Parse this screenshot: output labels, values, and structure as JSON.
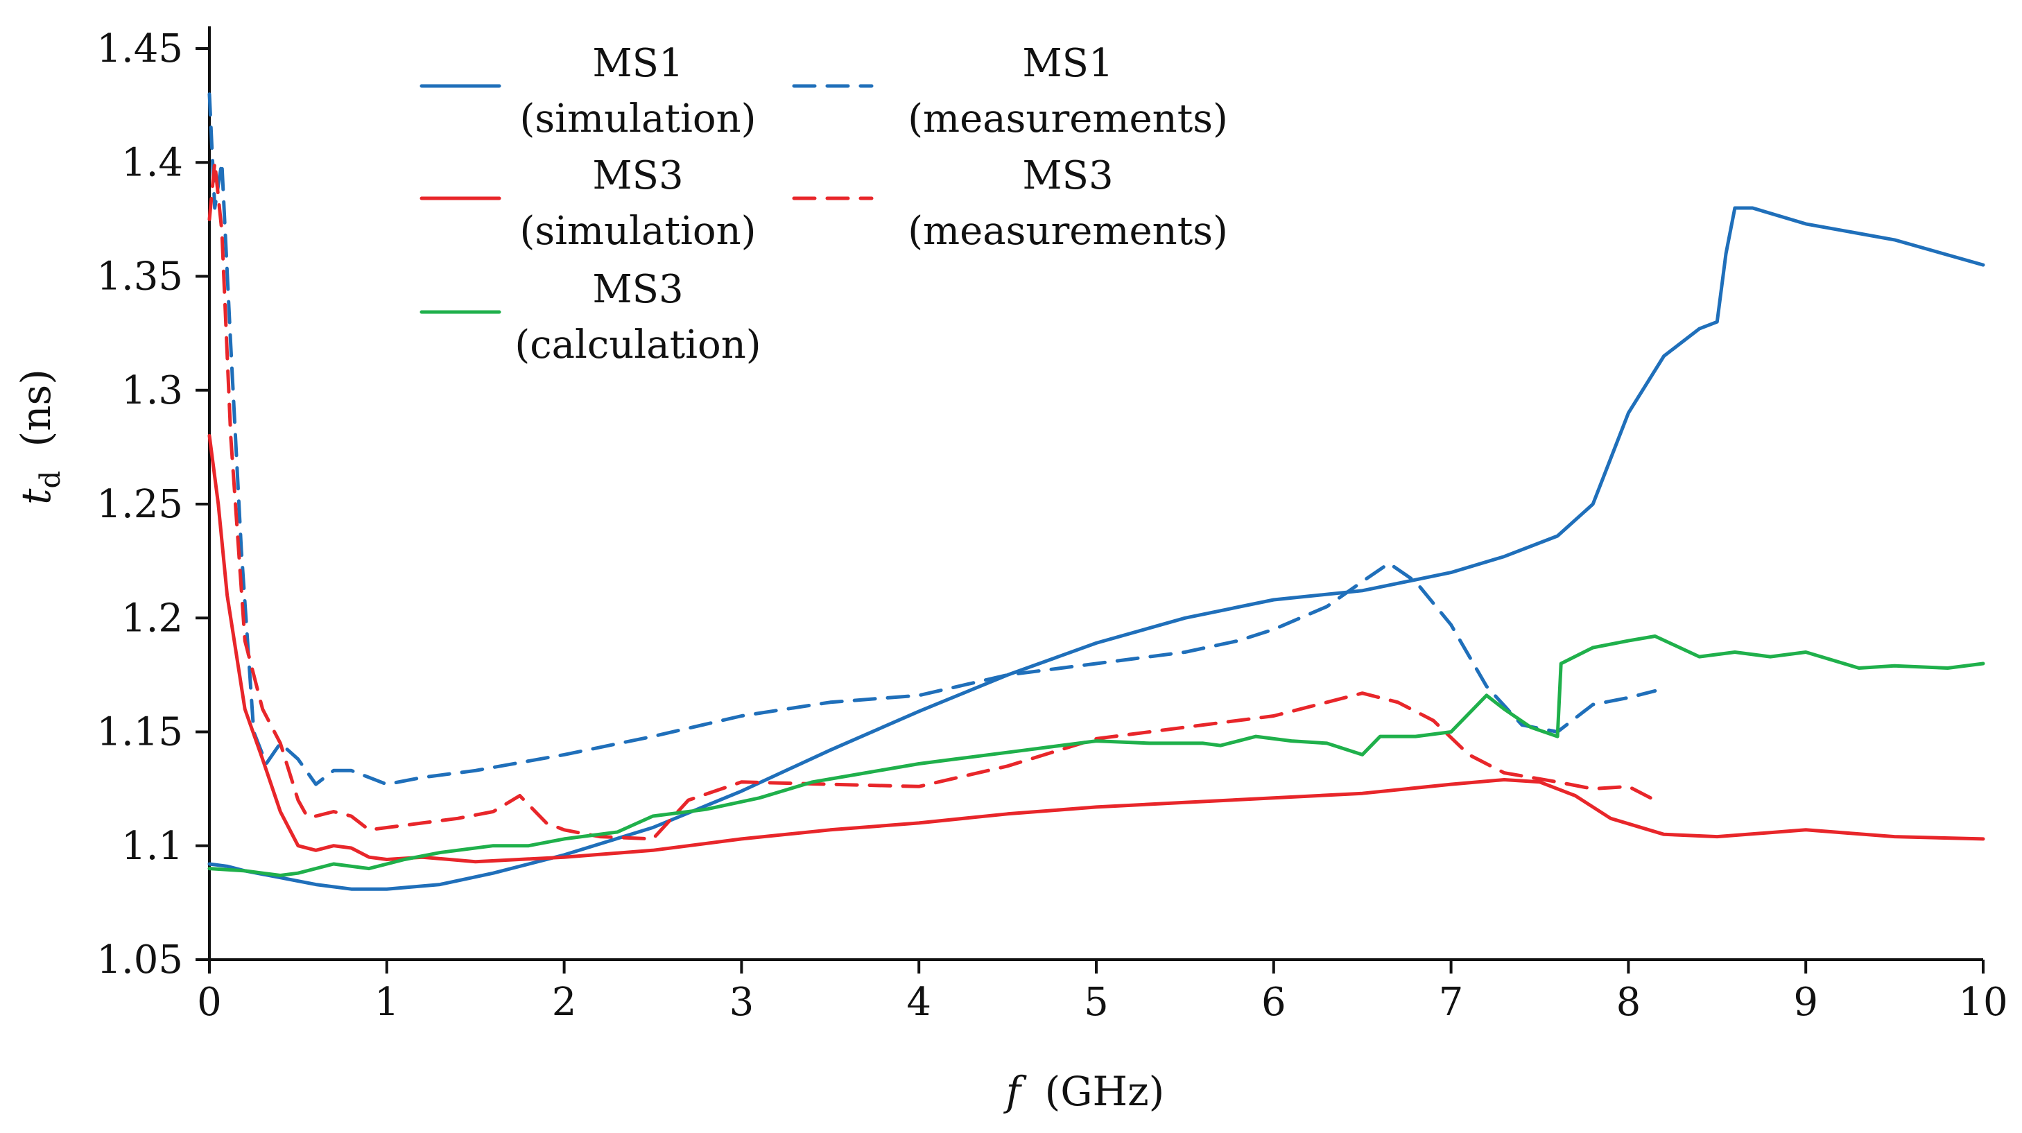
{
  "chart_data": {
    "type": "line",
    "title": "",
    "xlabel_symbol": "f",
    "xlabel_unit": "(GHz)",
    "ylabel_symbol": "t",
    "ylabel_subscript": "d",
    "ylabel_unit": "(ns)",
    "xlim": [
      0,
      10
    ],
    "ylim": [
      1.05,
      1.45
    ],
    "xticks": [
      0,
      1,
      2,
      3,
      4,
      5,
      6,
      7,
      8,
      9,
      10
    ],
    "xtick_labels": [
      "0",
      "1",
      "2",
      "3",
      "4",
      "5",
      "6",
      "7",
      "8",
      "9",
      "10"
    ],
    "yticks": [
      1.05,
      1.1,
      1.15,
      1.2,
      1.25,
      1.3,
      1.35,
      1.4,
      1.45
    ],
    "ytick_labels": [
      "1.05",
      "1.1",
      "1.15",
      "1.2",
      "1.25",
      "1.3",
      "1.35",
      "1.4",
      "1.45"
    ],
    "grid": false,
    "legend_position": "top-left",
    "series": [
      {
        "id": "ms1-sim",
        "name_line1": "MS1",
        "name_line2": "(simulation)",
        "color": "#1f6fba",
        "dashed": false,
        "x": [
          0,
          0.1,
          0.2,
          0.4,
          0.6,
          0.8,
          1.0,
          1.3,
          1.6,
          2.0,
          2.5,
          3.0,
          3.5,
          4.0,
          4.5,
          5.0,
          5.5,
          6.0,
          6.5,
          7.0,
          7.3,
          7.6,
          7.8,
          7.9,
          8.0,
          8.2,
          8.4,
          8.5,
          8.55,
          8.6,
          8.7,
          9.0,
          9.5,
          10.0
        ],
        "y": [
          1.092,
          1.091,
          1.089,
          1.086,
          1.083,
          1.081,
          1.081,
          1.083,
          1.088,
          1.096,
          1.108,
          1.124,
          1.142,
          1.159,
          1.175,
          1.189,
          1.2,
          1.208,
          1.212,
          1.22,
          1.227,
          1.236,
          1.25,
          1.27,
          1.29,
          1.315,
          1.327,
          1.33,
          1.36,
          1.38,
          1.38,
          1.373,
          1.366,
          1.355
        ]
      },
      {
        "id": "ms1-meas",
        "name_line1": "MS1",
        "name_line2": "(measurements)",
        "color": "#1f6fba",
        "dashed": true,
        "x": [
          0,
          0.03,
          0.07,
          0.12,
          0.18,
          0.25,
          0.32,
          0.4,
          0.5,
          0.6,
          0.7,
          0.8,
          1.0,
          1.2,
          1.5,
          2.0,
          2.5,
          3.0,
          3.5,
          4.0,
          4.5,
          5.0,
          5.5,
          5.8,
          6.0,
          6.3,
          6.5,
          6.65,
          6.8,
          7.0,
          7.2,
          7.4,
          7.6,
          7.8,
          8.0,
          8.15
        ],
        "y": [
          1.43,
          1.38,
          1.4,
          1.32,
          1.23,
          1.15,
          1.136,
          1.145,
          1.138,
          1.127,
          1.133,
          1.133,
          1.127,
          1.13,
          1.133,
          1.14,
          1.148,
          1.157,
          1.163,
          1.166,
          1.175,
          1.18,
          1.185,
          1.19,
          1.195,
          1.205,
          1.216,
          1.224,
          1.216,
          1.197,
          1.17,
          1.153,
          1.15,
          1.162,
          1.165,
          1.168
        ]
      },
      {
        "id": "ms3-sim",
        "name_line1": "MS3",
        "name_line2": "(simulation)",
        "color": "#e8262a",
        "dashed": false,
        "x": [
          0,
          0.05,
          0.1,
          0.2,
          0.3,
          0.4,
          0.5,
          0.6,
          0.7,
          0.8,
          0.9,
          1.0,
          1.2,
          1.5,
          2.0,
          2.5,
          3.0,
          3.5,
          4.0,
          4.5,
          5.0,
          5.5,
          6.0,
          6.5,
          7.0,
          7.3,
          7.5,
          7.7,
          7.9,
          8.2,
          8.5,
          9.0,
          9.5,
          10.0
        ],
        "y": [
          1.28,
          1.25,
          1.21,
          1.16,
          1.138,
          1.115,
          1.1,
          1.098,
          1.1,
          1.099,
          1.095,
          1.094,
          1.095,
          1.093,
          1.095,
          1.098,
          1.103,
          1.107,
          1.11,
          1.114,
          1.117,
          1.119,
          1.121,
          1.123,
          1.127,
          1.129,
          1.128,
          1.122,
          1.112,
          1.105,
          1.104,
          1.107,
          1.104,
          1.103
        ]
      },
      {
        "id": "ms3-meas",
        "name_line1": "MS3",
        "name_line2": "(measurements)",
        "color": "#e8262a",
        "dashed": true,
        "x": [
          0,
          0.03,
          0.07,
          0.12,
          0.2,
          0.3,
          0.4,
          0.5,
          0.55,
          0.6,
          0.7,
          0.8,
          0.9,
          1.0,
          1.2,
          1.4,
          1.6,
          1.75,
          1.9,
          2.0,
          2.2,
          2.5,
          2.7,
          3.0,
          3.5,
          4.0,
          4.5,
          5.0,
          5.5,
          6.0,
          6.3,
          6.5,
          6.7,
          6.9,
          7.1,
          7.3,
          7.6,
          7.8,
          8.0,
          8.15
        ],
        "y": [
          1.375,
          1.4,
          1.37,
          1.28,
          1.19,
          1.16,
          1.145,
          1.12,
          1.113,
          1.113,
          1.115,
          1.113,
          1.107,
          1.108,
          1.11,
          1.112,
          1.115,
          1.122,
          1.11,
          1.107,
          1.104,
          1.103,
          1.12,
          1.128,
          1.127,
          1.126,
          1.135,
          1.147,
          1.152,
          1.157,
          1.163,
          1.167,
          1.163,
          1.155,
          1.14,
          1.132,
          1.128,
          1.125,
          1.126,
          1.12
        ]
      },
      {
        "id": "ms3-calc",
        "name_line1": "MS3",
        "name_line2": "(calculation)",
        "color": "#1fb04b",
        "dashed": false,
        "x": [
          0,
          0.2,
          0.4,
          0.5,
          0.7,
          0.9,
          1.1,
          1.3,
          1.6,
          1.8,
          2.0,
          2.3,
          2.5,
          2.8,
          3.1,
          3.4,
          3.7,
          4.0,
          4.2,
          4.6,
          5.0,
          5.3,
          5.6,
          5.7,
          5.9,
          6.1,
          6.3,
          6.5,
          6.6,
          6.8,
          7.0,
          7.2,
          7.3,
          7.45,
          7.6,
          7.62,
          7.8,
          8.0,
          8.15,
          8.4,
          8.6,
          8.8,
          9.0,
          9.3,
          9.5,
          9.8,
          10.0
        ],
        "y": [
          1.09,
          1.089,
          1.087,
          1.088,
          1.092,
          1.09,
          1.094,
          1.097,
          1.1,
          1.1,
          1.103,
          1.106,
          1.113,
          1.116,
          1.121,
          1.128,
          1.132,
          1.136,
          1.138,
          1.142,
          1.146,
          1.145,
          1.145,
          1.144,
          1.148,
          1.146,
          1.145,
          1.14,
          1.148,
          1.148,
          1.15,
          1.166,
          1.16,
          1.152,
          1.148,
          1.18,
          1.187,
          1.19,
          1.192,
          1.183,
          1.185,
          1.183,
          1.185,
          1.178,
          1.179,
          1.178,
          1.18
        ]
      }
    ]
  }
}
